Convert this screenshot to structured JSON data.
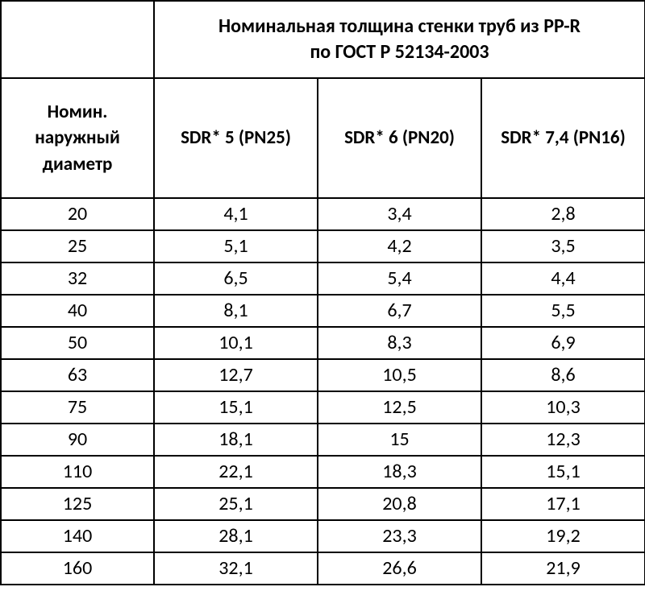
{
  "title_line1": "Номинальная толщина стенки труб из PP-R",
  "title_line2": "по ГОСТ Р 52134-2003",
  "headers": {
    "diameter_line1": "Номин.",
    "diameter_line2": "наружный",
    "diameter_line3": "диаметр",
    "sdr5": "SDR* 5 (PN25)",
    "sdr6": "SDR* 6 (PN20)",
    "sdr74": "SDR* 7,4 (PN16)"
  },
  "rows": [
    {
      "d": "20",
      "sdr5": "4,1",
      "sdr6": "3,4",
      "sdr74": "2,8"
    },
    {
      "d": "25",
      "sdr5": "5,1",
      "sdr6": "4,2",
      "sdr74": "3,5"
    },
    {
      "d": "32",
      "sdr5": "6,5",
      "sdr6": "5,4",
      "sdr74": "4,4"
    },
    {
      "d": "40",
      "sdr5": "8,1",
      "sdr6": "6,7",
      "sdr74": "5,5"
    },
    {
      "d": "50",
      "sdr5": "10,1",
      "sdr6": "8,3",
      "sdr74": "6,9"
    },
    {
      "d": "63",
      "sdr5": "12,7",
      "sdr6": "10,5",
      "sdr74": "8,6"
    },
    {
      "d": "75",
      "sdr5": "15,1",
      "sdr6": "12,5",
      "sdr74": "10,3"
    },
    {
      "d": "90",
      "sdr5": "18,1",
      "sdr6": "15",
      "sdr74": "12,3"
    },
    {
      "d": "110",
      "sdr5": "22,1",
      "sdr6": "18,3",
      "sdr74": "15,1"
    },
    {
      "d": "125",
      "sdr5": "25,1",
      "sdr6": "20,8",
      "sdr74": "17,1"
    },
    {
      "d": "140",
      "sdr5": "28,1",
      "sdr6": "23,3",
      "sdr74": "19,2"
    },
    {
      "d": "160",
      "sdr5": "32,1",
      "sdr6": "26,6",
      "sdr74": "21,9"
    }
  ],
  "style": {
    "border_color": "#000000",
    "background": "#ffffff",
    "font_family": "Calibri",
    "header_fontsize_pt": 17,
    "body_fontsize_pt": 18
  }
}
